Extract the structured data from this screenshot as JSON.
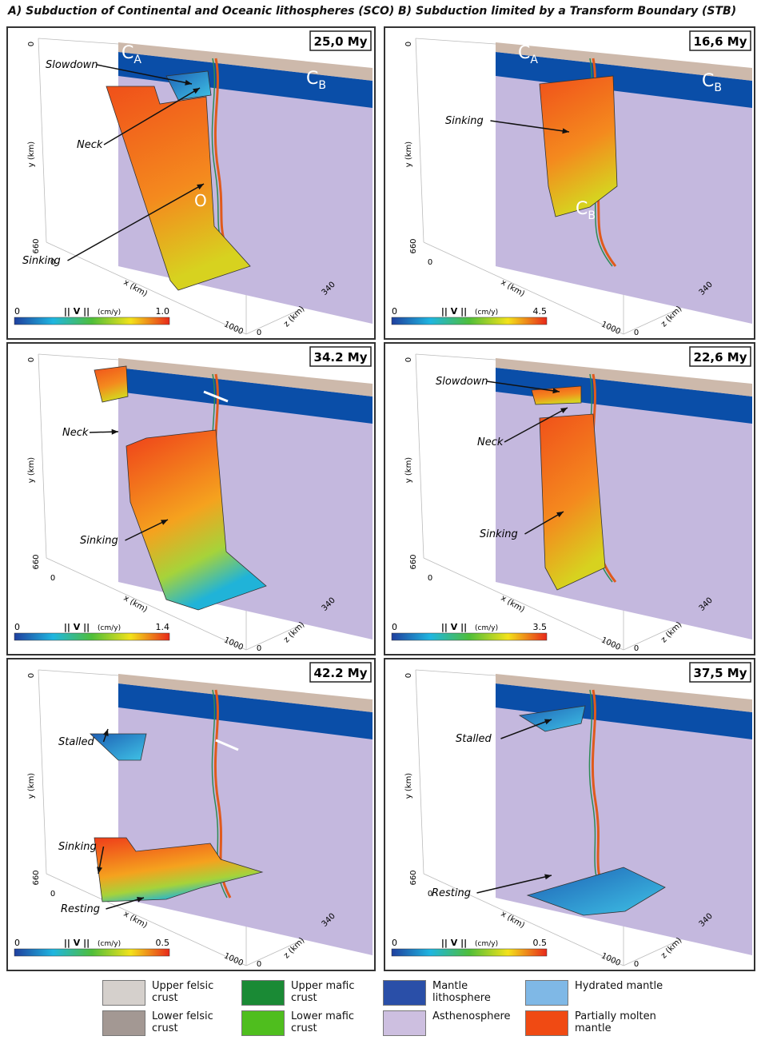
{
  "columns": [
    {
      "title": "A) Subduction of Continental and Oceanic lithospheres (SCO)",
      "panels": [
        {
          "time": "25,0 My",
          "colorbar_max": "1.0",
          "annotations": [
            "Slowdown",
            "Neck",
            "Sinking"
          ],
          "labels": [
            "CA",
            "CB",
            "O"
          ]
        },
        {
          "time": "34.2 My",
          "colorbar_max": "1.4",
          "annotations": [
            "Neck",
            "Sinking"
          ]
        },
        {
          "time": "42.2 My",
          "colorbar_max": "0.5",
          "annotations": [
            "Stalled",
            "Sinking",
            "Resting"
          ]
        }
      ]
    },
    {
      "title": "B) Subduction limited by a Transform Boundary (STB)",
      "panels": [
        {
          "time": "16,6 My",
          "colorbar_max": "4.5",
          "annotations": [
            "Sinking"
          ],
          "labels": [
            "CA",
            "CB",
            "CB"
          ]
        },
        {
          "time": "22,6 My",
          "colorbar_max": "3.5",
          "annotations": [
            "Slowdown",
            "Neck",
            "Sinking"
          ]
        },
        {
          "time": "37,5 My",
          "colorbar_max": "0.5",
          "annotations": [
            "Stalled",
            "Resting"
          ]
        }
      ]
    }
  ],
  "axes": {
    "y_min": "0",
    "y_label": "y (km)",
    "y_max": "660",
    "x_min": "0",
    "x_label": "x (km)",
    "x_max": "1000",
    "z_min": "0",
    "z_label": "z (km)",
    "z_max": "340"
  },
  "colorbar": {
    "min": "0",
    "label": "|| V ||",
    "unit": "(cm/y)"
  },
  "legend": [
    {
      "label": "Upper felsic crust",
      "color": "#d5d0cc"
    },
    {
      "label": "Lower felsic crust",
      "color": "#a39893"
    },
    {
      "label": "Upper mafic crust",
      "color": "#1a8a35"
    },
    {
      "label": "Lower mafic crust",
      "color": "#4fbe1e"
    },
    {
      "label": "Mantle lithosphere",
      "color": "#2a4fa8"
    },
    {
      "label": "Asthenosphere",
      "color": "#cdbfe0"
    },
    {
      "label": "Hydrated mantle",
      "color": "#7fb8e6"
    },
    {
      "label": "Partially molten mantle",
      "color": "#f04a13"
    }
  ]
}
